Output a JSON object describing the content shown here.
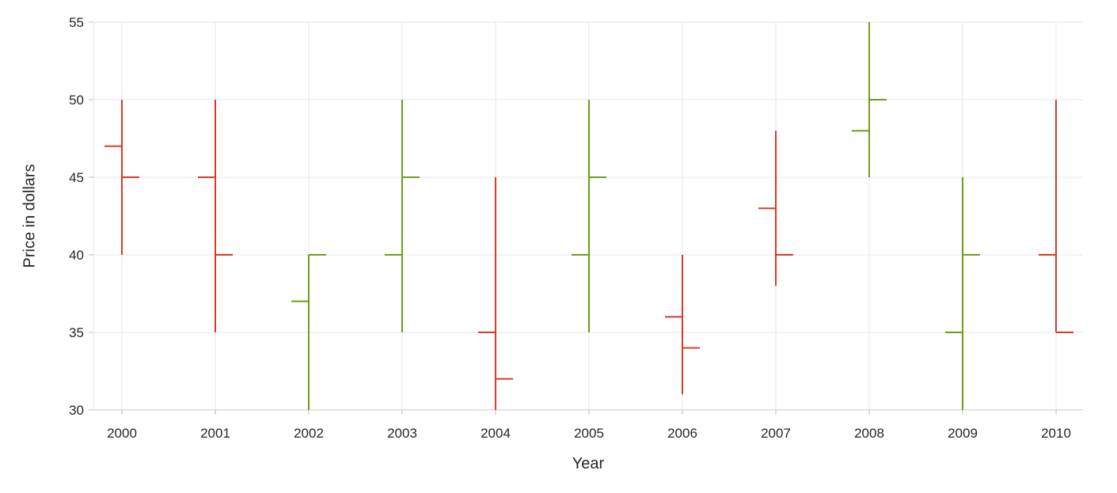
{
  "chart_data": {
    "type": "ohlc",
    "title": "",
    "xlabel": "Year",
    "ylabel": "Price in dollars",
    "categories": [
      "2000",
      "2001",
      "2002",
      "2003",
      "2004",
      "2005",
      "2006",
      "2007",
      "2008",
      "2009",
      "2010"
    ],
    "series": [
      {
        "x": 2000,
        "open": 47,
        "high": 50,
        "low": 40,
        "close": 45
      },
      {
        "x": 2001,
        "open": 45,
        "high": 50,
        "low": 35,
        "close": 40
      },
      {
        "x": 2002,
        "open": 37,
        "high": 40,
        "low": 30,
        "close": 40
      },
      {
        "x": 2003,
        "open": 40,
        "high": 50,
        "low": 35,
        "close": 45
      },
      {
        "x": 2004,
        "open": 35,
        "high": 45,
        "low": 30,
        "close": 32
      },
      {
        "x": 2005,
        "open": 40,
        "high": 50,
        "low": 35,
        "close": 45
      },
      {
        "x": 2006,
        "open": 36,
        "high": 40,
        "low": 31,
        "close": 34
      },
      {
        "x": 2007,
        "open": 43,
        "high": 48,
        "low": 38,
        "close": 40
      },
      {
        "x": 2008,
        "open": 48,
        "high": 55,
        "low": 45,
        "close": 50
      },
      {
        "x": 2009,
        "open": 35,
        "high": 45,
        "low": 30,
        "close": 40
      },
      {
        "x": 2010,
        "open": 40,
        "high": 50,
        "low": 35,
        "close": 35
      }
    ],
    "ylim": [
      30,
      55
    ],
    "yticks": [
      30,
      35,
      40,
      45,
      50,
      55
    ],
    "grid": true,
    "legend": "none",
    "colors": {
      "rising": "#6e9b1e",
      "falling": "#d93b25",
      "gridline": "#e6e6e6",
      "domain": "#c9c9c9",
      "tick": "#bbbbbb",
      "label": "#262626",
      "background": "#ffffff"
    }
  }
}
